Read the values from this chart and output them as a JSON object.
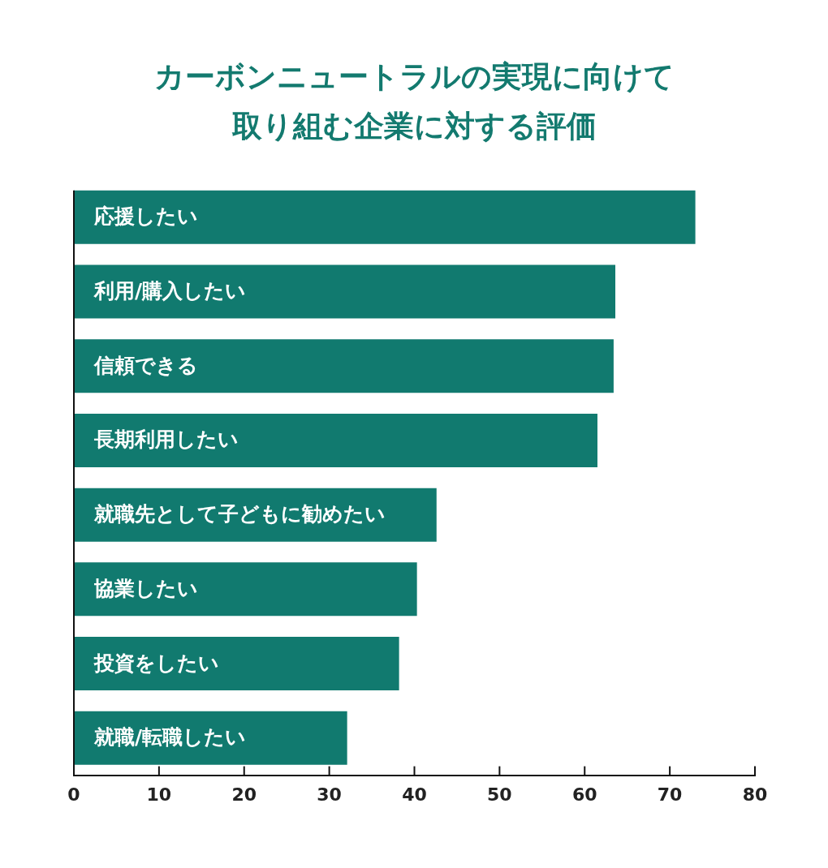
{
  "chart_data": {
    "type": "bar",
    "orientation": "horizontal",
    "title": "カーボンニュートラルの実現に向けて取り組む企業に対する評価",
    "categories": [
      "応援したい",
      "利用/購入したい",
      "信頼できる",
      "長期利用したい",
      "就職先として子どもに勧めたい",
      "協業したい",
      "投資をしたい",
      "就職/転職したい"
    ],
    "values": [
      73.0,
      63.6,
      63.4,
      61.5,
      42.6,
      40.3,
      38.2,
      32.1
    ],
    "color": "#117a6f",
    "xlim": [
      0,
      80
    ],
    "xticks": [
      0,
      10,
      20,
      30,
      40,
      50,
      60,
      70,
      80
    ],
    "grid": false,
    "legend": false
  }
}
